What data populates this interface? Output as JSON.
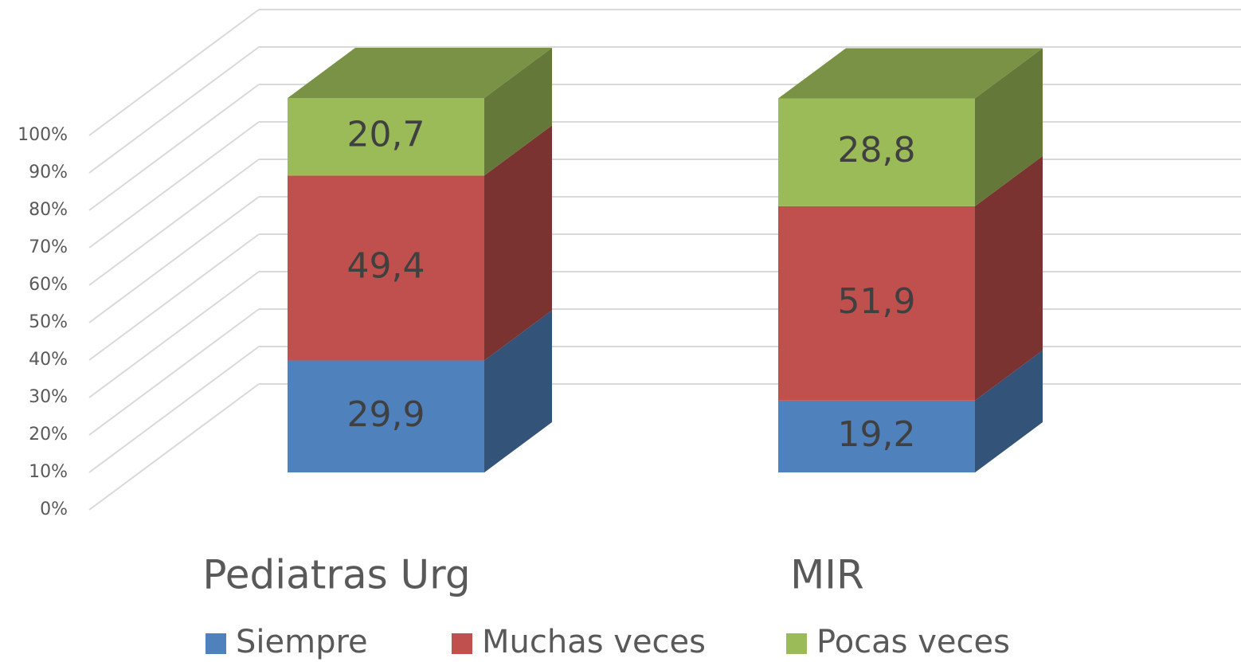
{
  "chart_data": {
    "type": "bar3d_stacked",
    "categories": [
      "Pediatras Urg",
      "MIR"
    ],
    "series": [
      {
        "name": "Siempre",
        "color": "#4f81bd",
        "values": [
          29.9,
          19.2
        ],
        "value_labels": [
          "29,9",
          "19,2"
        ]
      },
      {
        "name": "Muchas veces",
        "color": "#c0504d",
        "values": [
          49.4,
          51.9
        ],
        "value_labels": [
          "49,4",
          "51,9"
        ]
      },
      {
        "name": "Pocas veces",
        "color": "#9bbb59",
        "values": [
          20.7,
          28.8
        ],
        "value_labels": [
          "20,7",
          "28,8"
        ]
      }
    ],
    "ylim": [
      0,
      100
    ],
    "yticks": [
      {
        "value": 0,
        "label": "0%"
      },
      {
        "value": 10,
        "label": "10%"
      },
      {
        "value": 20,
        "label": "20%"
      },
      {
        "value": 30,
        "label": "30%"
      },
      {
        "value": 40,
        "label": "40%"
      },
      {
        "value": 50,
        "label": "50%"
      },
      {
        "value": 60,
        "label": "60%"
      },
      {
        "value": 70,
        "label": "70%"
      },
      {
        "value": 80,
        "label": "80%"
      },
      {
        "value": 90,
        "label": "90%"
      },
      {
        "value": 100,
        "label": "100%"
      }
    ],
    "grid": true,
    "legend": "bottom"
  }
}
